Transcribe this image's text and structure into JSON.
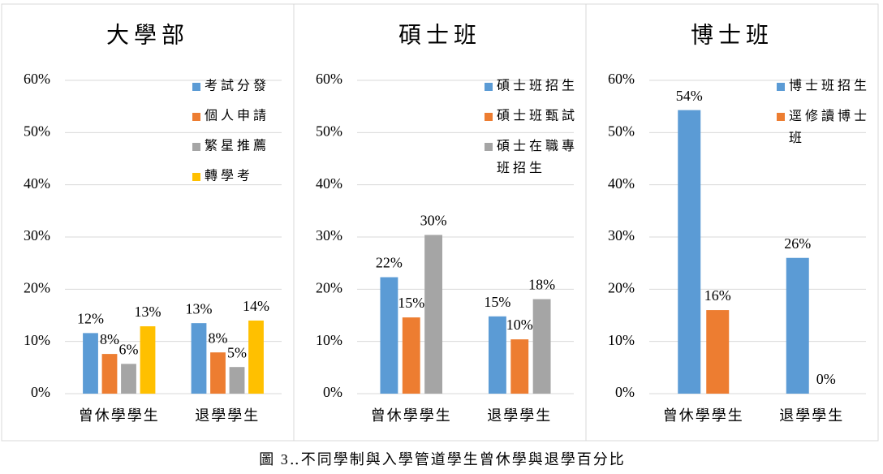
{
  "chart_data": [
    {
      "type": "bar",
      "title": "大學部",
      "categories": [
        "曾休學學生",
        "退學學生"
      ],
      "series": [
        {
          "name": "考試分發",
          "color": "#5b9bd5",
          "values": [
            11.6,
            13.5
          ],
          "value_labels": [
            "12%",
            "13%"
          ]
        },
        {
          "name": "個人申請",
          "color": "#ed7d31",
          "values": [
            7.6,
            7.9
          ],
          "value_labels": [
            "8%",
            "8%"
          ]
        },
        {
          "name": "繁星推薦",
          "color": "#a5a5a5",
          "values": [
            5.7,
            5.1
          ],
          "value_labels": [
            "6%",
            "5%"
          ]
        },
        {
          "name": "轉學考",
          "color": "#ffc000",
          "values": [
            12.9,
            14.0
          ],
          "value_labels": [
            "13%",
            "14%"
          ]
        }
      ],
      "ylim": [
        0,
        60
      ],
      "yticks": [
        {
          "value": 0,
          "label": "0%"
        },
        {
          "value": 10,
          "label": "10%"
        },
        {
          "value": 20,
          "label": "20%"
        },
        {
          "value": 30,
          "label": "30%"
        },
        {
          "value": 40,
          "label": "40%"
        },
        {
          "value": 50,
          "label": "50%"
        },
        {
          "value": 60,
          "label": "60%"
        }
      ],
      "grid": true,
      "legend": "top-right"
    },
    {
      "type": "bar",
      "title": "碩士班",
      "categories": [
        "曾休學學生",
        "退學學生"
      ],
      "series": [
        {
          "name": "碩士班招生",
          "color": "#5b9bd5",
          "values": [
            22.3,
            14.8
          ],
          "value_labels": [
            "22%",
            "15%"
          ]
        },
        {
          "name": "碩士班甄試",
          "color": "#ed7d31",
          "values": [
            14.6,
            10.4
          ],
          "value_labels": [
            "15%",
            "10%"
          ]
        },
        {
          "name": "碩士在職專班招生",
          "color": "#a5a5a5",
          "values": [
            30.4,
            18.1
          ],
          "value_labels": [
            "30%",
            "18%"
          ]
        }
      ],
      "ylim": [
        0,
        60
      ],
      "yticks": [
        {
          "value": 0,
          "label": "0%"
        },
        {
          "value": 10,
          "label": "10%"
        },
        {
          "value": 20,
          "label": "20%"
        },
        {
          "value": 30,
          "label": "30%"
        },
        {
          "value": 40,
          "label": "40%"
        },
        {
          "value": 50,
          "label": "50%"
        },
        {
          "value": 60,
          "label": "60%"
        }
      ],
      "grid": true,
      "legend": "top-right"
    },
    {
      "type": "bar",
      "title": "博士班",
      "categories": [
        "曾休學學生",
        "退學學生"
      ],
      "series": [
        {
          "name": "博士班招生",
          "color": "#5b9bd5",
          "values": [
            54.3,
            26.0
          ],
          "value_labels": [
            "54%",
            "26%"
          ]
        },
        {
          "name": "逕修讀博士班",
          "color": "#ed7d31",
          "values": [
            16.0,
            0
          ],
          "value_labels": [
            "16%",
            "0%"
          ]
        }
      ],
      "ylim": [
        0,
        60
      ],
      "yticks": [
        {
          "value": 0,
          "label": "0%"
        },
        {
          "value": 10,
          "label": "10%"
        },
        {
          "value": 20,
          "label": "20%"
        },
        {
          "value": 30,
          "label": "30%"
        },
        {
          "value": 40,
          "label": "40%"
        },
        {
          "value": 50,
          "label": "50%"
        },
        {
          "value": 60,
          "label": "60%"
        }
      ],
      "grid": true,
      "legend": "top-right"
    }
  ],
  "caption": "圖 3‥不同學制與入學管道學生曾休學與退學百分比"
}
